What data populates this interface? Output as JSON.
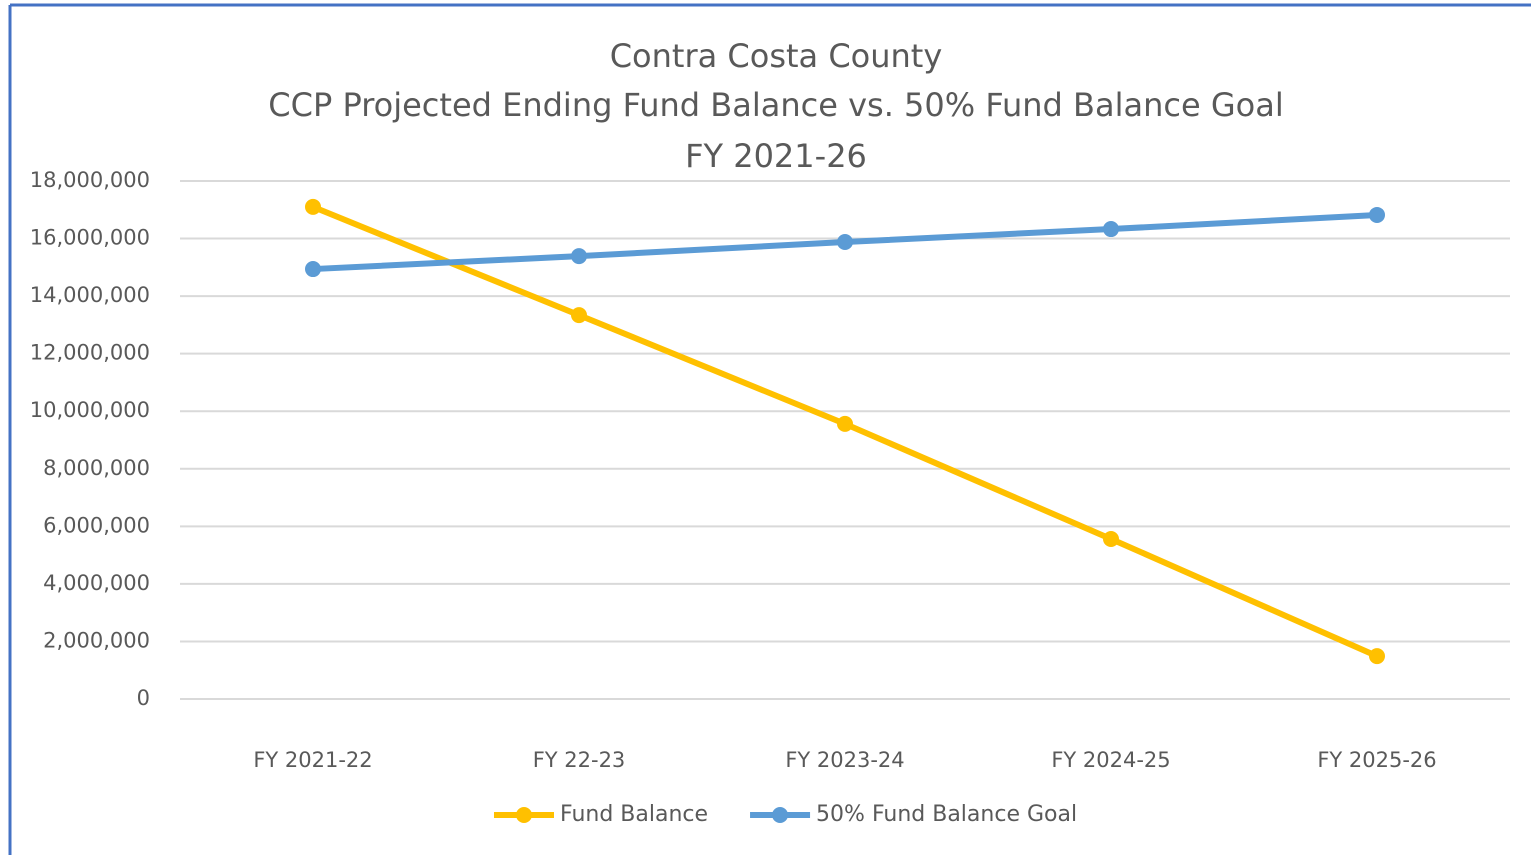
{
  "chart_data": {
    "type": "line",
    "title": [
      "Contra Costa County",
      "CCP Projected Ending Fund Balance vs. 50% Fund Balance Goal",
      "FY 2021-26"
    ],
    "categories": [
      "FY 2021-22",
      "FY 22-23",
      "FY 2023-24",
      "FY 2024-25",
      "FY 2025-26"
    ],
    "series": [
      {
        "name": "Fund Balance",
        "color": "#ffc000",
        "values": [
          17100000,
          13340000,
          9560000,
          5560000,
          1490000
        ]
      },
      {
        "name": "50% Fund Balance Goal",
        "color": "#5b9bd5",
        "values": [
          14940000,
          15390000,
          15880000,
          16330000,
          16820000
        ]
      }
    ],
    "ylim": [
      0,
      18000000
    ],
    "yticks": [
      0,
      {
        "value": 2000000,
        "label": "2,000,000"
      },
      {
        "value": 4000000,
        "label": "4,000,000"
      },
      {
        "value": 6000000,
        "label": "6,000,000"
      },
      {
        "value": 8000000,
        "label": "8,000,000"
      },
      {
        "value": 10000000,
        "label": "10,000,000"
      },
      {
        "value": 12000000,
        "label": "12,000,000"
      },
      {
        "value": 14000000,
        "label": "14,000,000"
      },
      {
        "value": 16000000,
        "label": "16,000,000"
      },
      {
        "value": 18000000,
        "label": "18,000,000"
      }
    ],
    "grid": true,
    "legend": "bottom"
  }
}
